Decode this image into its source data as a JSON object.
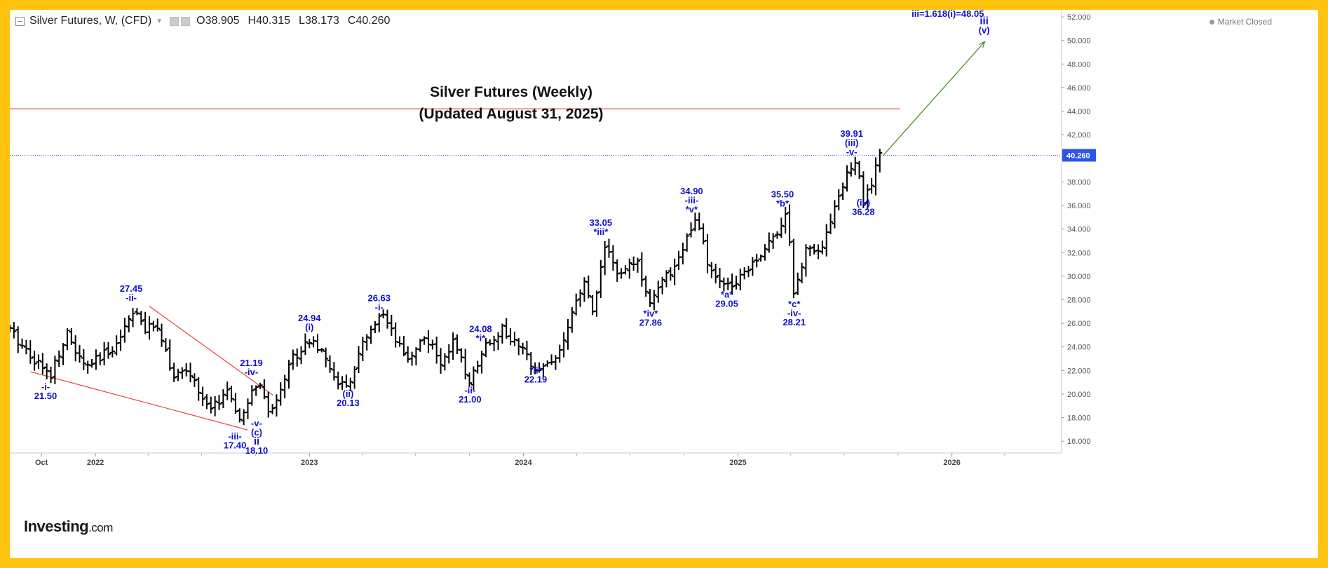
{
  "header": {
    "symbol_title": "Silver Futures, W, (CFD)",
    "open_label": "O",
    "open": "38.905",
    "high_label": "H",
    "high": "40.315",
    "low_label": "L",
    "low": "38.173",
    "close_label": "C",
    "close": "40.260",
    "market_status": "Market Closed"
  },
  "branding": {
    "logo": "Investing",
    "logo_suffix": ".com"
  },
  "colors": {
    "border": "#ffc20e",
    "bars": "#000000",
    "wave_labels": "#1010d0",
    "trendlines": "#e8403a",
    "projection_arrow": "#3d8a1a",
    "current_price_line": "#2c55e8",
    "price_tag": "#2c55e8"
  },
  "chart_data": {
    "type": "ohlc-bar",
    "title": "Silver Futures (Weekly)",
    "subtitle": "(Updated August 31, 2025)",
    "interval": "weekly",
    "ylim": [
      15,
      52.6
    ],
    "y_ticks": [
      "16.000",
      "18.000",
      "20.000",
      "22.000",
      "24.000",
      "26.000",
      "28.000",
      "30.000",
      "32.000",
      "34.000",
      "36.000",
      "38.000",
      "40.000",
      "42.000",
      "44.000",
      "46.000",
      "48.000",
      "50.000",
      "52.000"
    ],
    "x_ticks": [
      {
        "label": "Oct",
        "date": "2021-10-01",
        "major": false
      },
      {
        "label": "2022",
        "date": "2022-01-01",
        "major": true
      },
      {
        "label": "2023",
        "date": "2023-01-01",
        "major": true
      },
      {
        "label": "2024",
        "date": "2024-01-01",
        "major": true
      },
      {
        "label": "2025",
        "date": "2025-01-01",
        "major": true
      },
      {
        "label": "2026",
        "date": "2026-01-01",
        "major": true
      }
    ],
    "x_range": [
      "2021-08-08",
      "2026-07-07"
    ],
    "current_price": "40.260",
    "resistance_level": 44.2,
    "resistance_range": [
      "2021-08-08",
      "2025-10-05"
    ],
    "lower_trendline": [
      [
        "2021-09-12",
        21.9
      ],
      [
        "2022-09-18",
        16.95
      ]
    ],
    "upper_trendline": [
      [
        "2022-04-03",
        27.45
      ],
      [
        "2022-10-31",
        19.9
      ]
    ],
    "projection_arrow": [
      [
        "2025-09-05",
        40.2
      ],
      [
        "2026-02-26",
        49.9
      ]
    ],
    "anchors": [
      {
        "date": "2021-08-08",
        "price": 25.4
      },
      {
        "date": "2021-10-15",
        "price": 21.5
      },
      {
        "date": "2021-11-12",
        "price": 25.2
      },
      {
        "date": "2021-12-12",
        "price": 22.3
      },
      {
        "date": "2022-01-10",
        "price": 23.0
      },
      {
        "date": "2022-02-10",
        "price": 24.6
      },
      {
        "date": "2022-03-08",
        "price": 27.45
      },
      {
        "date": "2022-03-25",
        "price": 25.3
      },
      {
        "date": "2022-04-18",
        "price": 25.9
      },
      {
        "date": "2022-05-15",
        "price": 21.4
      },
      {
        "date": "2022-06-10",
        "price": 21.9
      },
      {
        "date": "2022-07-15",
        "price": 18.4
      },
      {
        "date": "2022-08-14",
        "price": 20.5
      },
      {
        "date": "2022-09-01",
        "price": 17.4
      },
      {
        "date": "2022-10-05",
        "price": 21.19
      },
      {
        "date": "2022-10-24",
        "price": 18.1
      },
      {
        "date": "2022-12-01",
        "price": 22.9
      },
      {
        "date": "2023-01-05",
        "price": 24.94
      },
      {
        "date": "2023-02-05",
        "price": 22.0
      },
      {
        "date": "2023-03-08",
        "price": 20.13
      },
      {
        "date": "2023-03-25",
        "price": 23.5
      },
      {
        "date": "2023-05-05",
        "price": 26.63
      },
      {
        "date": "2023-06-15",
        "price": 22.8
      },
      {
        "date": "2023-07-18",
        "price": 25.0
      },
      {
        "date": "2023-08-12",
        "price": 22.5
      },
      {
        "date": "2023-09-01",
        "price": 24.5
      },
      {
        "date": "2023-10-02",
        "price": 21.0
      },
      {
        "date": "2023-10-25",
        "price": 24.08
      },
      {
        "date": "2023-11-25",
        "price": 25.5
      },
      {
        "date": "2024-01-25",
        "price": 22.19
      },
      {
        "date": "2024-02-25",
        "price": 23.0
      },
      {
        "date": "2024-03-15",
        "price": 25.2
      },
      {
        "date": "2024-04-12",
        "price": 29.5
      },
      {
        "date": "2024-04-30",
        "price": 27.0
      },
      {
        "date": "2024-05-20",
        "price": 33.05
      },
      {
        "date": "2024-06-10",
        "price": 29.8
      },
      {
        "date": "2024-07-10",
        "price": 31.5
      },
      {
        "date": "2024-08-05",
        "price": 27.86
      },
      {
        "date": "2024-09-15",
        "price": 31.0
      },
      {
        "date": "2024-10-22",
        "price": 34.9
      },
      {
        "date": "2024-11-15",
        "price": 30.2
      },
      {
        "date": "2024-12-15",
        "price": 29.05
      },
      {
        "date": "2025-01-25",
        "price": 31.2
      },
      {
        "date": "2025-02-25",
        "price": 32.8
      },
      {
        "date": "2025-03-25",
        "price": 35.5
      },
      {
        "date": "2025-04-07",
        "price": 28.21
      },
      {
        "date": "2025-04-28",
        "price": 32.6
      },
      {
        "date": "2025-05-25",
        "price": 32.5
      },
      {
        "date": "2025-06-18",
        "price": 36.5
      },
      {
        "date": "2025-07-20",
        "price": 39.91
      },
      {
        "date": "2025-08-03",
        "price": 36.28
      },
      {
        "date": "2025-08-18",
        "price": 38.0
      },
      {
        "date": "2025-08-31",
        "price": 40.26
      }
    ],
    "annotations": [
      {
        "date": "2021-10-08",
        "price": 21.2,
        "lines": [
          "-i-",
          "21.50"
        ],
        "pos": "below"
      },
      {
        "date": "2022-03-03",
        "price": 27.6,
        "lines": [
          "27.45",
          "-ii-"
        ],
        "pos": "above"
      },
      {
        "date": "2022-08-27",
        "price": 17.0,
        "lines": [
          "-iii-",
          "17.40"
        ],
        "pos": "below"
      },
      {
        "date": "2022-09-24",
        "price": 21.3,
        "lines": [
          "21.19",
          "-iv-"
        ],
        "pos": "above"
      },
      {
        "date": "2022-10-03",
        "price": 18.1,
        "lines": [
          "-v-",
          "(c)",
          "ii",
          "18.10"
        ],
        "pos": "below",
        "bold": [
          2
        ]
      },
      {
        "date": "2023-01-01",
        "price": 25.1,
        "lines": [
          "24.94",
          "(i)"
        ],
        "pos": "above"
      },
      {
        "date": "2023-03-08",
        "price": 20.6,
        "lines": [
          "(ii)",
          "20.13"
        ],
        "pos": "below"
      },
      {
        "date": "2023-04-30",
        "price": 26.8,
        "lines": [
          "26.63",
          "-i-"
        ],
        "pos": "above"
      },
      {
        "date": "2023-10-02",
        "price": 20.9,
        "lines": [
          "-ii-",
          "21.00"
        ],
        "pos": "below"
      },
      {
        "date": "2023-10-20",
        "price": 24.2,
        "lines": [
          "24.08",
          "*i*"
        ],
        "pos": "above"
      },
      {
        "date": "2024-01-22",
        "price": 22.6,
        "lines": [
          "*ii*",
          "22.19"
        ],
        "pos": "below"
      },
      {
        "date": "2024-05-12",
        "price": 33.2,
        "lines": [
          "33.05",
          "*iii*"
        ],
        "pos": "above"
      },
      {
        "date": "2024-08-05",
        "price": 27.4,
        "lines": [
          "*iv*",
          "27.86"
        ],
        "pos": "below"
      },
      {
        "date": "2024-10-14",
        "price": 35.1,
        "lines": [
          "34.90",
          "-iii-",
          "*v*"
        ],
        "pos": "above"
      },
      {
        "date": "2024-12-13",
        "price": 29.0,
        "lines": [
          "*a*",
          "29.05"
        ],
        "pos": "below"
      },
      {
        "date": "2025-03-18",
        "price": 35.6,
        "lines": [
          "35.50",
          "*b*"
        ],
        "pos": "above"
      },
      {
        "date": "2025-04-07",
        "price": 28.2,
        "lines": [
          "*c*",
          "-iv-",
          "28.21"
        ],
        "pos": "below"
      },
      {
        "date": "2025-07-14",
        "price": 40.0,
        "lines": [
          "39.91",
          "(iii)",
          "-v-"
        ],
        "pos": "above"
      },
      {
        "date": "2025-08-03",
        "price": 36.8,
        "lines": [
          "(iv)",
          "36.28"
        ],
        "pos": "below"
      },
      {
        "date": "2026-02-25",
        "price": 50.3,
        "lines": [
          "iii",
          "(v)"
        ],
        "pos": "above",
        "bold": [
          0
        ]
      },
      {
        "date": "2025-12-25",
        "price": 51.7,
        "lines": [
          "iii=1.618(i)=48.05"
        ],
        "pos": "above"
      }
    ]
  }
}
